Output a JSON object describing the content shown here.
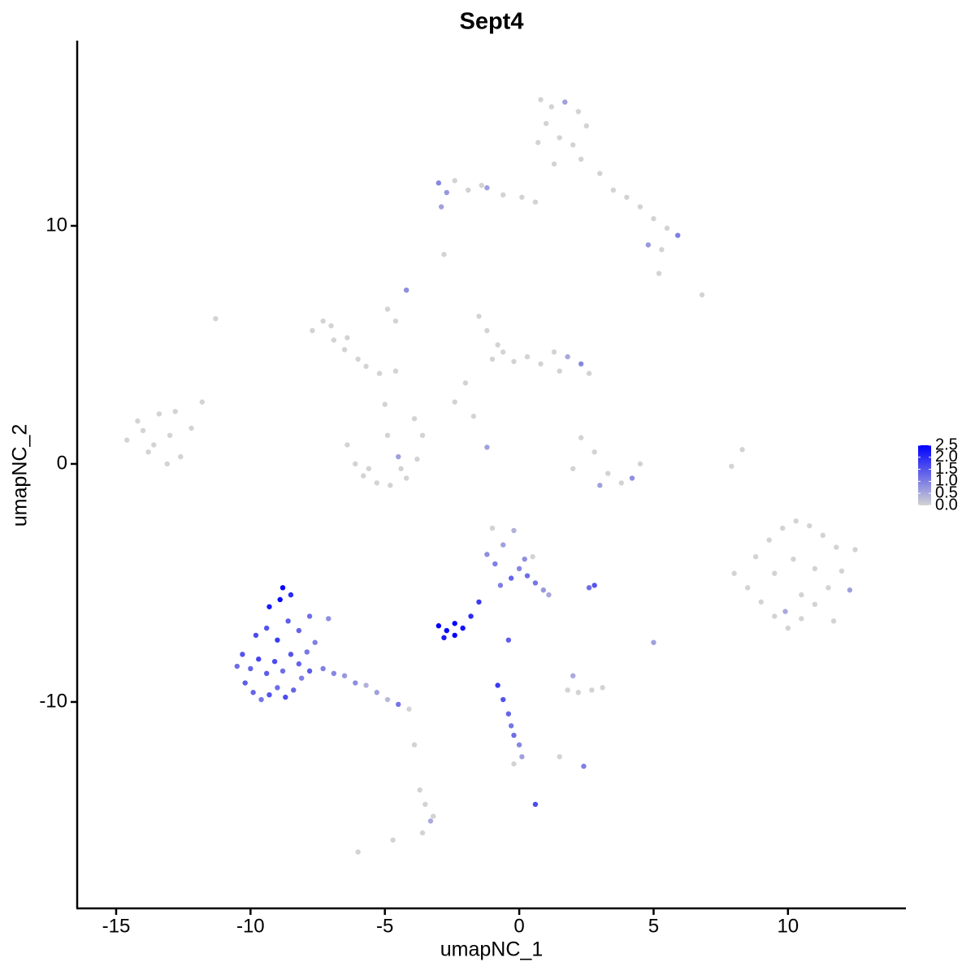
{
  "chart_data": {
    "type": "scatter",
    "title": "Sept4",
    "x_label": "umapNC_1",
    "y_label": "umapNC_2",
    "xlim": [
      -16.45,
      14.39
    ],
    "ylim": [
      -18.67,
      17.78
    ],
    "xticks": [
      -15,
      -10,
      -5,
      0,
      5,
      10
    ],
    "yticks": [
      -10,
      0,
      10
    ],
    "colorbar": {
      "lim": [
        0,
        2.5
      ],
      "low": "#d3d3d3",
      "high": "#0000ff",
      "ticks": [
        {
          "value": 0,
          "label": "0.0"
        },
        {
          "value": 0.5,
          "label": "0.5"
        },
        {
          "value": 1,
          "label": "1.0"
        },
        {
          "value": 1.5,
          "label": "1.5"
        },
        {
          "value": 2,
          "label": "2.0"
        },
        {
          "value": 2.5,
          "label": "2.5"
        }
      ]
    },
    "x": [
      -14.6,
      -14.2,
      -13.8,
      -13.4,
      -13.0,
      -12.6,
      -12.2,
      -13.6,
      -13.1,
      -12.8,
      -14.0,
      -11.8,
      -7.7,
      -7.3,
      -6.9,
      -6.5,
      -6.0,
      -7.0,
      -6.4,
      -5.7,
      -5.2,
      -4.6,
      -4.2,
      -4.9,
      -6.4,
      -6.1,
      -5.8,
      -5.3,
      -4.8,
      -4.2,
      -3.8,
      -3.6,
      -3.9,
      -5.0,
      -4.5,
      -5.6,
      -4.4,
      -4.9,
      -1.5,
      -1.2,
      -0.8,
      -1.0,
      -0.6,
      -0.2,
      0.3,
      0.8,
      1.3,
      1.8,
      2.3,
      2.6,
      1.5,
      -2.0,
      -2.4,
      -1.7,
      0.8,
      1.2,
      1.7,
      2.2,
      2.5,
      1.0,
      1.5,
      2.0,
      0.7,
      1.3,
      2.3,
      3.0,
      3.5,
      4.0,
      4.5,
      5.0,
      5.5,
      5.9,
      4.8,
      5.3,
      -3.0,
      -2.7,
      -2.4,
      -1.9,
      -1.2,
      -0.6,
      0.1,
      0.6,
      -2.9,
      -1.4,
      -2.8,
      -4.6,
      -1.2,
      -11.3,
      6.8,
      5.2,
      2.3,
      2.8,
      3.3,
      3.8,
      4.2,
      4.5,
      2.0,
      3.0,
      8.3,
      7.9,
      8.0,
      8.5,
      9.0,
      9.5,
      10.0,
      10.5,
      11.0,
      11.5,
      12.0,
      12.5,
      8.8,
      9.3,
      9.8,
      10.3,
      10.8,
      11.3,
      11.8,
      12.3,
      9.5,
      10.2,
      11.0,
      11.7,
      10.5,
      9.9,
      -10.5,
      -10.2,
      -9.9,
      -9.6,
      -9.3,
      -9.0,
      -8.7,
      -8.4,
      -8.1,
      -7.8,
      -10.3,
      -10.0,
      -9.7,
      -9.4,
      -9.1,
      -8.8,
      -8.5,
      -8.2,
      -7.9,
      -7.6,
      -9.8,
      -9.4,
      -9.0,
      -8.6,
      -8.2,
      -7.8,
      -9.3,
      -8.9,
      -8.5,
      -8.8,
      -7.3,
      -6.9,
      -6.5,
      -6.1,
      -5.7,
      -5.3,
      -4.9,
      -4.5,
      -4.1,
      -7.1,
      -3.0,
      -2.7,
      -2.4,
      -2.1,
      -2.8,
      -2.4,
      -1.8,
      -1.5,
      -1.2,
      -0.9,
      -0.6,
      -0.3,
      0.0,
      0.3,
      0.6,
      0.9,
      1.1,
      -1.0,
      -0.2,
      0.5,
      -0.7,
      0.2,
      2.8,
      2.6,
      1.8,
      2.2,
      2.7,
      3.1,
      2.0,
      5.0,
      -0.4,
      -0.8,
      -0.6,
      -0.4,
      -0.3,
      -0.2,
      0.0,
      0.1,
      -0.2,
      2.4,
      1.5,
      0.6,
      -3.7,
      -3.5,
      -3.3,
      -3.6,
      -3.2,
      -3.9,
      -6.0,
      -4.7
    ],
    "values": [
      1.0,
      1.8,
      0.5,
      2.1,
      1.2,
      0.3,
      1.5,
      0.8,
      0.0,
      2.2,
      1.4,
      2.6,
      5.6,
      6.0,
      5.2,
      4.8,
      4.4,
      5.8,
      5.3,
      4.1,
      3.8,
      3.9,
      7.3,
      6.5,
      0.8,
      0.0,
      -0.5,
      -0.8,
      -0.9,
      -0.6,
      0.2,
      1.2,
      1.9,
      2.5,
      0.3,
      -0.2,
      -0.2,
      1.2,
      6.2,
      5.6,
      5.0,
      4.4,
      4.7,
      4.3,
      4.5,
      4.2,
      4.7,
      4.5,
      4.2,
      3.8,
      3.9,
      3.4,
      2.6,
      2.0,
      15.3,
      15.0,
      15.2,
      14.8,
      14.2,
      14.3,
      13.7,
      13.4,
      13.5,
      12.6,
      12.8,
      12.2,
      11.5,
      11.2,
      10.8,
      10.3,
      9.9,
      9.6,
      9.2,
      9.0,
      11.8,
      11.4,
      11.9,
      11.5,
      11.6,
      11.3,
      11.2,
      11.0,
      10.8,
      11.7,
      8.8,
      6.0,
      0.7,
      6.1,
      7.1,
      8.0,
      1.1,
      0.5,
      -0.4,
      -0.8,
      -0.6,
      0.0,
      -0.2,
      -0.9,
      0.6,
      -0.1,
      -4.6,
      -5.2,
      -5.8,
      -6.4,
      -6.9,
      -6.5,
      -5.9,
      -5.2,
      -4.5,
      -3.6,
      -3.9,
      -3.2,
      -2.7,
      -2.4,
      -2.6,
      -3.0,
      -3.5,
      -5.3,
      -4.6,
      -4.0,
      -4.4,
      -6.6,
      -5.5,
      -6.2,
      -8.5,
      -9.2,
      -9.6,
      -9.9,
      -9.7,
      -9.4,
      -9.8,
      -9.5,
      -9.0,
      -8.7,
      -8.0,
      -8.6,
      -8.2,
      -8.8,
      -8.3,
      -8.7,
      -8.0,
      -8.4,
      -7.9,
      -7.5,
      -7.2,
      -6.9,
      -7.4,
      -6.6,
      -7.0,
      -6.4,
      -6.0,
      -5.7,
      -5.5,
      -5.2,
      -8.6,
      -8.8,
      -8.9,
      -9.2,
      -9.3,
      -9.6,
      -9.9,
      -10.1,
      -10.3,
      -6.5,
      -6.8,
      -7.0,
      -7.2,
      -6.9,
      -7.3,
      -6.7,
      -6.4,
      -5.8,
      -3.8,
      -4.2,
      -3.4,
      -4.8,
      -4.4,
      -4.7,
      -5.0,
      -5.3,
      -5.5,
      -2.7,
      -2.8,
      -3.9,
      -5.1,
      -4.0,
      -5.1,
      -5.2,
      -9.5,
      -9.6,
      -9.5,
      -9.4,
      -8.9,
      -7.5,
      -7.4,
      -9.3,
      -9.9,
      -10.5,
      -11.0,
      -11.4,
      -11.8,
      -12.3,
      -12.6,
      -12.7,
      -12.3,
      -14.3,
      -13.7,
      -14.3,
      -15.0,
      -15.5,
      -14.8,
      -11.8,
      -16.3,
      -15.8
    ],
    "color_values": [
      0,
      0,
      0,
      0,
      0,
      0,
      0,
      0,
      0,
      0,
      0,
      0,
      0,
      0,
      0,
      0,
      0,
      0,
      0,
      0,
      0,
      0,
      0.8,
      0,
      0,
      0,
      0,
      0,
      0,
      0,
      0,
      0,
      0,
      0,
      0.6,
      0,
      0,
      0,
      0,
      0,
      0,
      0,
      0,
      0,
      0,
      0,
      0,
      0.5,
      0.9,
      0,
      0,
      0,
      0,
      0,
      0,
      0,
      0.6,
      0,
      0,
      0,
      0,
      0,
      0,
      0,
      0,
      0,
      0,
      0,
      0,
      0,
      0,
      1.0,
      0.7,
      0,
      0.9,
      0.7,
      0,
      0,
      0.6,
      0,
      0,
      0,
      0.6,
      0,
      0,
      0,
      0.6,
      0,
      0,
      0,
      0,
      0,
      0,
      0,
      0.8,
      0,
      0,
      0.6,
      0,
      0,
      0,
      0,
      0,
      0,
      0,
      0,
      0,
      0,
      0,
      0,
      0,
      0,
      0,
      0,
      0,
      0,
      0,
      0.6,
      0,
      0,
      0,
      0,
      0,
      0.5,
      1.2,
      1.4,
      1.3,
      1.1,
      1.5,
      1.2,
      1.6,
      1.3,
      1.0,
      1.4,
      1.5,
      1.3,
      1.7,
      1.4,
      1.6,
      1.2,
      1.5,
      1.3,
      1.1,
      1.0,
      1.6,
      1.5,
      1.8,
      1.4,
      1.3,
      1.2,
      2.2,
      2.4,
      2.0,
      2.5,
      1.0,
      0.9,
      0.7,
      0.8,
      0.4,
      0.6,
      0.3,
      1.1,
      0,
      0.8,
      2.5,
      2.4,
      2.5,
      2.3,
      2.2,
      2.5,
      2.0,
      1.8,
      0.8,
      1.0,
      0.6,
      1.3,
      0.9,
      1.2,
      1.1,
      0.7,
      0.5,
      0,
      0.4,
      0,
      1.0,
      0.8,
      1.5,
      1.2,
      0,
      0,
      0,
      0,
      0.5,
      0.6,
      1.4,
      1.8,
      1.5,
      1.3,
      1.1,
      1.2,
      0.9,
      0.6,
      0,
      1.0,
      0,
      1.6,
      0,
      0,
      0.5,
      0,
      0,
      0,
      0,
      0
    ]
  }
}
